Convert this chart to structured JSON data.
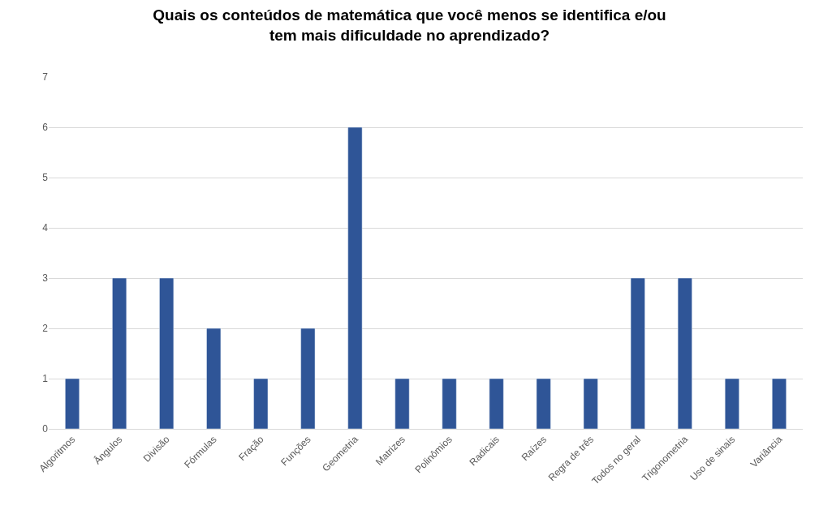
{
  "chart_data": {
    "type": "bar",
    "title": "Quais os conteúdos de matemática que você menos se identifica e/ou\ntem mais dificuldade no aprendizado?",
    "categories": [
      "Algoritmos",
      "Ângulos",
      "Divisão",
      "Fórmulas",
      "Fração",
      "Funções",
      "Geometria",
      "Matrizes",
      "Polinômios",
      "Radicais",
      "Raízes",
      "Regra de três",
      "Todos no geral",
      "Trigonometria",
      "Uso de sinais",
      "Variância"
    ],
    "values": [
      1,
      3,
      3,
      2,
      1,
      2,
      6,
      1,
      1,
      1,
      1,
      1,
      3,
      3,
      1,
      1
    ],
    "color": "#2f5597",
    "ylim": [
      0,
      7
    ],
    "yticks": [
      0,
      1,
      2,
      3,
      4,
      5,
      6,
      7
    ],
    "grid": "y",
    "legend": false
  }
}
